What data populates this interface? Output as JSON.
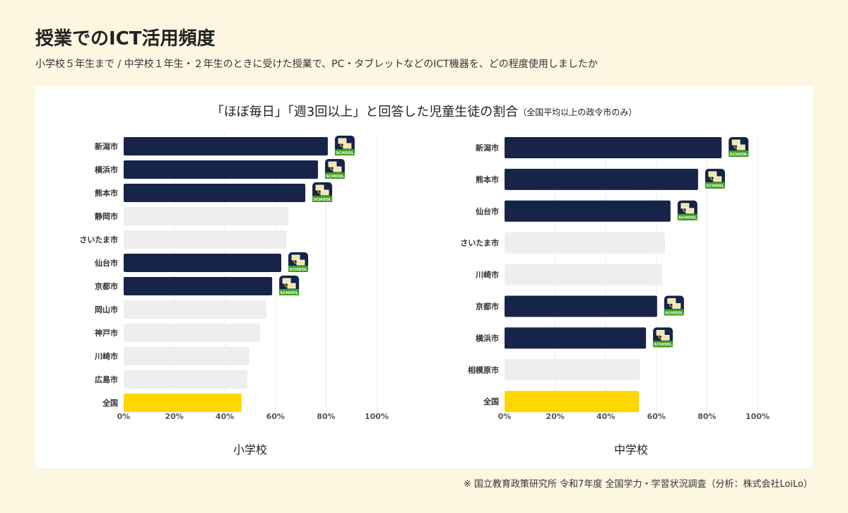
{
  "header": {
    "title": "授業でのICT活用頻度",
    "subtitle": "小学校５年生まで / 中学校１年生・２年生のときに受けた授業で、PC・タブレットなどのICT機器を、どの程度使用しましたか"
  },
  "chart_heading": "「ほぼ毎日」「週3回以上」と回答した児童生徒の割合",
  "chart_heading_note": "（全国平均以上の政令市のみ）",
  "colors": {
    "highlight": "#17244a",
    "other": "#eeeeee",
    "national": "#ffd600",
    "icon_green": "#3f9e1e",
    "background": "#fdf6e1"
  },
  "icon": {
    "name": "loilo-school-icon",
    "logo_text": "SCHOOL"
  },
  "chart_data": [
    {
      "type": "bar",
      "orientation": "horizontal",
      "xlabel": "小学校",
      "xlim": [
        0,
        100
      ],
      "ticks": [
        "0%",
        "20%",
        "40%",
        "60%",
        "80%",
        "100%"
      ],
      "grid": true,
      "categories": [
        "新潟市",
        "横浜市",
        "熊本市",
        "静岡市",
        "さいたま市",
        "仙台市",
        "京都市",
        "岡山市",
        "神戸市",
        "川崎市",
        "広島市",
        "全国"
      ],
      "values": [
        80.7,
        76.8,
        71.8,
        65.1,
        64.5,
        62.3,
        58.7,
        56.4,
        53.9,
        49.7,
        48.9,
        46.6
      ],
      "highlight": [
        true,
        true,
        true,
        false,
        false,
        true,
        true,
        false,
        false,
        false,
        false,
        false
      ]
    },
    {
      "type": "bar",
      "orientation": "horizontal",
      "xlabel": "中学校",
      "xlim": [
        0,
        100
      ],
      "ticks": [
        "0%",
        "20%",
        "40%",
        "60%",
        "80%",
        "100%"
      ],
      "grid": true,
      "categories": [
        "新潟市",
        "熊本市",
        "仙台市",
        "さいたま市",
        "川崎市",
        "京都市",
        "横浜市",
        "相模原市",
        "全国"
      ],
      "values": [
        85.8,
        76.5,
        65.6,
        63.4,
        62.3,
        60.3,
        55.9,
        53.6,
        53.1
      ],
      "highlight": [
        true,
        true,
        true,
        false,
        false,
        true,
        true,
        false,
        false
      ]
    }
  ],
  "footer": "※ 国立教育政策研究所 令和7年度 全国学力・学習状況調査（分析：株式会社LoiLo）"
}
